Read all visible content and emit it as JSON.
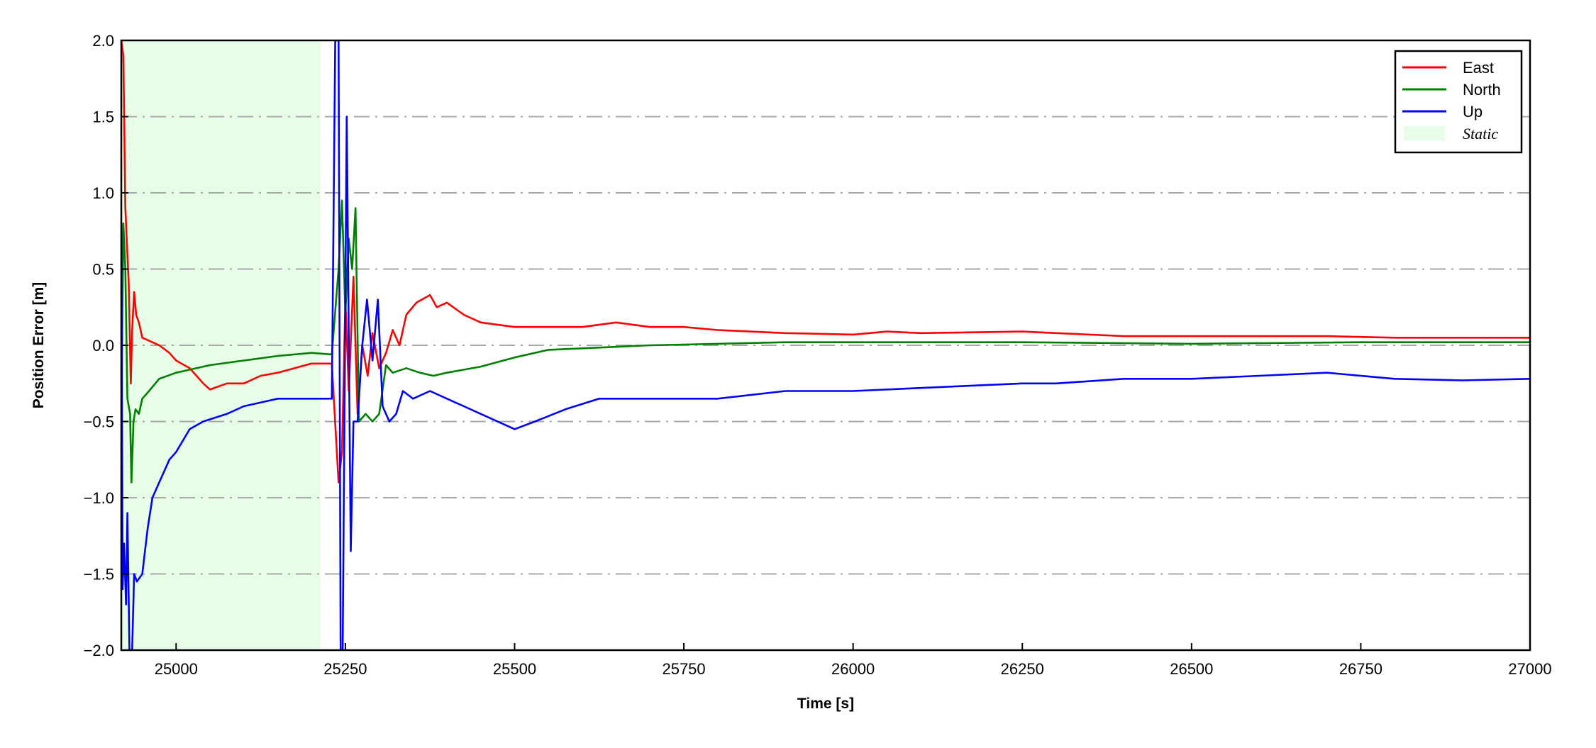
{
  "chart_data": {
    "type": "line",
    "title": "",
    "xlabel": "Time [s]",
    "ylabel": "Position Error [m]",
    "xlim": [
      24919,
      27000
    ],
    "ylim": [
      -2.0,
      2.0
    ],
    "xticks": [
      25000,
      25250,
      25500,
      25750,
      26000,
      26250,
      26500,
      26750,
      27000
    ],
    "yticks": [
      -2.0,
      -1.5,
      -1.0,
      -0.5,
      0.0,
      0.5,
      1.0,
      1.5,
      2.0
    ],
    "ytick_labels": [
      "−2.0",
      "−1.5",
      "−1.0",
      "−0.5",
      "0.0",
      "0.5",
      "1.0",
      "1.5",
      "2.0"
    ],
    "grid": "horizontal dash-dot, gray",
    "legend_placement": "top-right",
    "shaded_regions": [
      {
        "name": "Static",
        "x": [
          24919,
          25213
        ],
        "color": "#e8fde8"
      }
    ],
    "series": [
      {
        "name": "East",
        "color": "#ff0000",
        "points": [
          [
            24919,
            2.0
          ],
          [
            24922,
            1.9
          ],
          [
            24925,
            0.9
          ],
          [
            24930,
            0.4
          ],
          [
            24933,
            -0.25
          ],
          [
            24935,
            0.1
          ],
          [
            24938,
            0.35
          ],
          [
            24941,
            0.2
          ],
          [
            24945,
            0.15
          ],
          [
            24950,
            0.05
          ],
          [
            24960,
            0.03
          ],
          [
            24975,
            0.0
          ],
          [
            24990,
            -0.05
          ],
          [
            25000,
            -0.1
          ],
          [
            25020,
            -0.15
          ],
          [
            25040,
            -0.25
          ],
          [
            25050,
            -0.29
          ],
          [
            25075,
            -0.25
          ],
          [
            25100,
            -0.25
          ],
          [
            25125,
            -0.2
          ],
          [
            25150,
            -0.18
          ],
          [
            25175,
            -0.15
          ],
          [
            25200,
            -0.12
          ],
          [
            25230,
            -0.12
          ],
          [
            25240,
            -0.9
          ],
          [
            25245,
            -0.7
          ],
          [
            25250,
            0.3
          ],
          [
            25255,
            -0.3
          ],
          [
            25262,
            0.45
          ],
          [
            25268,
            -0.45
          ],
          [
            25275,
            0.0
          ],
          [
            25283,
            -0.2
          ],
          [
            25290,
            0.08
          ],
          [
            25300,
            -0.15
          ],
          [
            25310,
            -0.05
          ],
          [
            25320,
            0.1
          ],
          [
            25330,
            0.0
          ],
          [
            25340,
            0.2
          ],
          [
            25355,
            0.28
          ],
          [
            25375,
            0.33
          ],
          [
            25385,
            0.25
          ],
          [
            25400,
            0.28
          ],
          [
            25425,
            0.2
          ],
          [
            25450,
            0.15
          ],
          [
            25500,
            0.12
          ],
          [
            25550,
            0.12
          ],
          [
            25600,
            0.12
          ],
          [
            25650,
            0.15
          ],
          [
            25700,
            0.12
          ],
          [
            25750,
            0.12
          ],
          [
            25800,
            0.1
          ],
          [
            25900,
            0.08
          ],
          [
            26000,
            0.07
          ],
          [
            26050,
            0.09
          ],
          [
            26100,
            0.08
          ],
          [
            26250,
            0.09
          ],
          [
            26300,
            0.08
          ],
          [
            26400,
            0.06
          ],
          [
            26500,
            0.06
          ],
          [
            26600,
            0.06
          ],
          [
            26700,
            0.06
          ],
          [
            26800,
            0.05
          ],
          [
            26900,
            0.05
          ],
          [
            27000,
            0.05
          ]
        ]
      },
      {
        "name": "North",
        "color": "#008000",
        "points": [
          [
            24919,
            -0.5
          ],
          [
            24922,
            0.8
          ],
          [
            24925,
            0.5
          ],
          [
            24928,
            -0.35
          ],
          [
            24932,
            -0.45
          ],
          [
            24934,
            -0.9
          ],
          [
            24937,
            -0.5
          ],
          [
            24940,
            -0.42
          ],
          [
            24945,
            -0.45
          ],
          [
            24950,
            -0.35
          ],
          [
            24960,
            -0.3
          ],
          [
            24975,
            -0.22
          ],
          [
            25000,
            -0.18
          ],
          [
            25050,
            -0.13
          ],
          [
            25100,
            -0.1
          ],
          [
            25150,
            -0.07
          ],
          [
            25200,
            -0.05
          ],
          [
            25230,
            -0.06
          ],
          [
            25240,
            0.5
          ],
          [
            25245,
            0.95
          ],
          [
            25250,
            0.2
          ],
          [
            25255,
            0.7
          ],
          [
            25260,
            0.5
          ],
          [
            25265,
            0.9
          ],
          [
            25270,
            -0.5
          ],
          [
            25280,
            -0.45
          ],
          [
            25290,
            -0.5
          ],
          [
            25300,
            -0.45
          ],
          [
            25310,
            -0.13
          ],
          [
            25320,
            -0.18
          ],
          [
            25340,
            -0.15
          ],
          [
            25360,
            -0.18
          ],
          [
            25380,
            -0.2
          ],
          [
            25400,
            -0.18
          ],
          [
            25450,
            -0.14
          ],
          [
            25500,
            -0.08
          ],
          [
            25550,
            -0.03
          ],
          [
            25600,
            -0.02
          ],
          [
            25700,
            0.0
          ],
          [
            25800,
            0.01
          ],
          [
            25900,
            0.02
          ],
          [
            26000,
            0.02
          ],
          [
            26100,
            0.02
          ],
          [
            26250,
            0.02
          ],
          [
            26500,
            0.01
          ],
          [
            26750,
            0.02
          ],
          [
            27000,
            0.02
          ]
        ]
      },
      {
        "name": "Up",
        "color": "#0000ff",
        "points": [
          [
            24919,
            0.8
          ],
          [
            24921,
            -1.6
          ],
          [
            24923,
            -1.3
          ],
          [
            24926,
            -1.7
          ],
          [
            24928,
            -1.1
          ],
          [
            24931,
            -2.0
          ],
          [
            24935,
            -2.0
          ],
          [
            24938,
            -1.5
          ],
          [
            24942,
            -1.55
          ],
          [
            24950,
            -1.5
          ],
          [
            24958,
            -1.2
          ],
          [
            24965,
            -1.0
          ],
          [
            24975,
            -0.9
          ],
          [
            24990,
            -0.75
          ],
          [
            25000,
            -0.7
          ],
          [
            25020,
            -0.55
          ],
          [
            25040,
            -0.5
          ],
          [
            25075,
            -0.45
          ],
          [
            25100,
            -0.4
          ],
          [
            25150,
            -0.35
          ],
          [
            25200,
            -0.35
          ],
          [
            25230,
            -0.35
          ],
          [
            25235,
            2.0
          ],
          [
            25240,
            2.0
          ],
          [
            25243,
            -2.0
          ],
          [
            25246,
            -2.0
          ],
          [
            25252,
            1.5
          ],
          [
            25258,
            -1.35
          ],
          [
            25262,
            -0.5
          ],
          [
            25268,
            -0.5
          ],
          [
            25275,
            0.0
          ],
          [
            25282,
            0.3
          ],
          [
            25290,
            -0.1
          ],
          [
            25298,
            0.3
          ],
          [
            25305,
            -0.4
          ],
          [
            25315,
            -0.5
          ],
          [
            25325,
            -0.45
          ],
          [
            25335,
            -0.3
          ],
          [
            25350,
            -0.35
          ],
          [
            25375,
            -0.3
          ],
          [
            25400,
            -0.35
          ],
          [
            25425,
            -0.4
          ],
          [
            25450,
            -0.45
          ],
          [
            25500,
            -0.55
          ],
          [
            25530,
            -0.5
          ],
          [
            25575,
            -0.42
          ],
          [
            25625,
            -0.35
          ],
          [
            25700,
            -0.35
          ],
          [
            25800,
            -0.35
          ],
          [
            25900,
            -0.3
          ],
          [
            26000,
            -0.3
          ],
          [
            26100,
            -0.28
          ],
          [
            26250,
            -0.25
          ],
          [
            26300,
            -0.25
          ],
          [
            26400,
            -0.22
          ],
          [
            26500,
            -0.22
          ],
          [
            26600,
            -0.2
          ],
          [
            26700,
            -0.18
          ],
          [
            26800,
            -0.22
          ],
          [
            26900,
            -0.23
          ],
          [
            27000,
            -0.22
          ]
        ]
      }
    ],
    "legend": [
      "East",
      "North",
      "Up",
      "Static"
    ]
  }
}
